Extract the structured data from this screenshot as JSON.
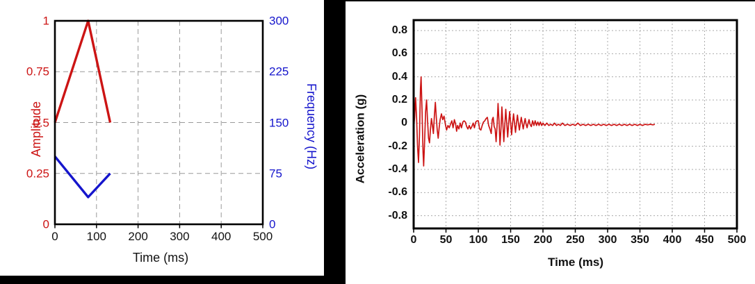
{
  "canvas": {
    "background": "#000000",
    "panel_background": "#ffffff"
  },
  "chart_data": [
    {
      "id": "pulse-definition-chart",
      "type": "line",
      "xlabel": "Time (ms)",
      "x_range": [
        0,
        500
      ],
      "x_ticks": {
        "values": [
          0,
          100,
          200,
          300,
          400,
          500
        ],
        "labels": [
          "0",
          "100",
          "200",
          "300",
          "400",
          "500"
        ],
        "color": "#111111"
      },
      "left_axis": {
        "label": "Amplitude",
        "color": "#cc1414",
        "range": [
          0,
          1
        ],
        "tick_values": [
          0,
          0.25,
          0.5,
          0.75,
          1
        ],
        "tick_labels": [
          "0",
          "0.25",
          "0.5",
          "0.75",
          "1"
        ]
      },
      "right_axis": {
        "label": "Frequency (Hz)",
        "color": "#1515cc",
        "range": [
          0,
          300
        ],
        "tick_values": [
          0,
          75,
          150,
          225,
          300
        ],
        "tick_labels": [
          "0",
          "75",
          "150",
          "225",
          "300"
        ]
      },
      "grid": {
        "show": true,
        "color": "#999999",
        "dash": "7,5",
        "horizontal_axis": "left"
      },
      "series": [
        {
          "id": "amplitude-line",
          "name": "Amplitude",
          "axis": "left",
          "color": "#cc1414",
          "width": 3.4,
          "points": [
            [
              0,
              0.5
            ],
            [
              80,
              1.0
            ],
            [
              133,
              0.5
            ]
          ]
        },
        {
          "id": "frequency-line",
          "name": "Frequency (Hz)",
          "axis": "right",
          "color": "#1515cc",
          "width": 3.4,
          "points": [
            [
              0,
              100
            ],
            [
              80,
              40
            ],
            [
              133,
              75
            ]
          ]
        }
      ]
    },
    {
      "id": "acceleration-time-history-chart",
      "type": "line",
      "xlabel": "Time (ms)",
      "ylabel": "Acceleration (g)",
      "x_range": [
        0,
        500
      ],
      "x_ticks": {
        "values": [
          0,
          50,
          100,
          150,
          200,
          250,
          300,
          350,
          400,
          450,
          500
        ],
        "labels": [
          "0",
          "50",
          "100",
          "150",
          "200",
          "250",
          "300",
          "350",
          "400",
          "450",
          "500"
        ],
        "color": "#111111"
      },
      "y_axis": {
        "label": "Acceleration (g)",
        "color": "#111111",
        "range": [
          -0.91,
          0.89
        ],
        "tick_values": [
          0.8,
          0.6,
          0.4,
          0.2,
          0,
          -0.2,
          -0.4,
          -0.6,
          -0.8
        ],
        "tick_labels": [
          "0.8",
          "0.6",
          "0.4",
          "0.2",
          "0",
          "-0.2",
          "-0.4",
          "-0.6",
          "-0.8"
        ]
      },
      "grid": {
        "show": true,
        "color": "#aaaaaa",
        "dash": "2,3",
        "horizontal_axis": "y"
      },
      "series": [
        {
          "id": "acceleration-trace",
          "name": "Acceleration (g)",
          "axis": "y",
          "color": "#cc1414",
          "width": 1.7,
          "points": [
            [
              0,
              -0.05
            ],
            [
              1.5,
              0.05
            ],
            [
              3,
              0.22
            ],
            [
              4.5,
              0.05
            ],
            [
              6,
              -0.2
            ],
            [
              7.5,
              -0.34
            ],
            [
              9,
              -0.1
            ],
            [
              10.5,
              0.3
            ],
            [
              11.5,
              0.4
            ],
            [
              13,
              0.1
            ],
            [
              14.5,
              -0.25
            ],
            [
              15.5,
              -0.37
            ],
            [
              17,
              -0.15
            ],
            [
              18.5,
              0.1
            ],
            [
              20,
              0.2
            ],
            [
              21.5,
              0.02
            ],
            [
              23,
              -0.13
            ],
            [
              24.5,
              -0.17
            ],
            [
              26,
              -0.05
            ],
            [
              27.5,
              0.04
            ],
            [
              29,
              -0.02
            ],
            [
              30.5,
              -0.09
            ],
            [
              32,
              0.06
            ],
            [
              33.5,
              0.18
            ],
            [
              35,
              0.05
            ],
            [
              36.5,
              -0.06
            ],
            [
              38,
              -0.13
            ],
            [
              39.5,
              -0.04
            ],
            [
              41,
              0.03
            ],
            [
              43,
              0.08
            ],
            [
              45,
              0.03
            ],
            [
              47,
              0.06
            ],
            [
              49,
              -0.01
            ],
            [
              51,
              -0.06
            ],
            [
              53,
              -0.02
            ],
            [
              55,
              -0.04
            ],
            [
              57,
              -0.01
            ],
            [
              59,
              0.02
            ],
            [
              61,
              -0.04
            ],
            [
              63,
              0.03
            ],
            [
              65,
              -0.01
            ],
            [
              66.5,
              -0.07
            ],
            [
              68,
              -0.02
            ],
            [
              70,
              -0.05
            ],
            [
              72,
              0
            ],
            [
              74,
              -0.04
            ],
            [
              76,
              0.01
            ],
            [
              78,
              0.02
            ],
            [
              80,
              0.01
            ],
            [
              82,
              -0.03
            ],
            [
              84,
              -0.05
            ],
            [
              86,
              -0.02
            ],
            [
              88,
              -0.05
            ],
            [
              90,
              -0.03
            ],
            [
              92,
              0
            ],
            [
              94,
              -0.04
            ],
            [
              96,
              0.01
            ],
            [
              98,
              0.02
            ],
            [
              100,
              0.02
            ],
            [
              102,
              -0.05
            ],
            [
              104,
              -0.06
            ],
            [
              106,
              -0.02
            ],
            [
              108,
              0.01
            ],
            [
              110,
              0.02
            ],
            [
              112,
              0.04
            ],
            [
              114,
              0.05
            ],
            [
              116,
              -0.02
            ],
            [
              118,
              -0.05
            ],
            [
              120,
              -0.09
            ],
            [
              121.5,
              0.03
            ],
            [
              123,
              0.05
            ],
            [
              124.5,
              -0.03
            ],
            [
              126,
              -0.05
            ],
            [
              127.5,
              -0.16
            ],
            [
              129,
              -0.02
            ],
            [
              130.5,
              0.17
            ],
            [
              132,
              0.02
            ],
            [
              133.5,
              -0.19
            ],
            [
              135,
              -0.05
            ],
            [
              136.5,
              0.14
            ],
            [
              138,
              0
            ],
            [
              139.5,
              -0.16
            ],
            [
              141,
              -0.02
            ],
            [
              142.5,
              0.12
            ],
            [
              144,
              0
            ],
            [
              145.5,
              -0.12
            ],
            [
              147,
              0
            ],
            [
              148.5,
              0.1
            ],
            [
              150,
              0
            ],
            [
              151.5,
              -0.1
            ],
            [
              153,
              0
            ],
            [
              154.5,
              0.08
            ],
            [
              156,
              0
            ],
            [
              157.5,
              -0.08
            ],
            [
              159,
              0
            ],
            [
              160.5,
              0.07
            ],
            [
              162,
              0
            ],
            [
              163.5,
              -0.06
            ],
            [
              165,
              0
            ],
            [
              166.5,
              0.05
            ],
            [
              168,
              0
            ],
            [
              169.5,
              -0.05
            ],
            [
              171,
              0
            ],
            [
              172.5,
              0.04
            ],
            [
              174,
              -0.01
            ],
            [
              175.5,
              -0.04
            ],
            [
              177,
              0
            ],
            [
              178.5,
              0.03
            ],
            [
              180,
              -0.01
            ],
            [
              182,
              -0.03
            ],
            [
              184,
              0.02
            ],
            [
              186,
              -0.02
            ],
            [
              188,
              0.02
            ],
            [
              190,
              -0.02
            ],
            [
              192,
              0.01
            ],
            [
              194,
              -0.02
            ],
            [
              196,
              0.01
            ],
            [
              198,
              -0.02
            ],
            [
              200,
              0
            ],
            [
              203,
              -0.02
            ],
            [
              206,
              0
            ],
            [
              209,
              -0.02
            ],
            [
              212,
              -0.01
            ],
            [
              215,
              -0.02
            ],
            [
              218,
              0
            ],
            [
              221,
              -0.02
            ],
            [
              224,
              -0.01
            ],
            [
              227,
              -0.02
            ],
            [
              230,
              0
            ],
            [
              234,
              -0.02
            ],
            [
              238,
              -0.01
            ],
            [
              242,
              -0.02
            ],
            [
              246,
              -0.01
            ],
            [
              250,
              -0.02
            ],
            [
              254,
              0
            ],
            [
              258,
              -0.02
            ],
            [
              262,
              -0.01
            ],
            [
              266,
              -0.02
            ],
            [
              270,
              -0.01
            ],
            [
              274,
              -0.02
            ],
            [
              278,
              -0.01
            ],
            [
              282,
              -0.02
            ],
            [
              286,
              -0.01
            ],
            [
              290,
              -0.02
            ],
            [
              294,
              -0.01
            ],
            [
              298,
              -0.02
            ],
            [
              302,
              -0.01
            ],
            [
              306,
              -0.02
            ],
            [
              310,
              -0.01
            ],
            [
              314,
              -0.02
            ],
            [
              318,
              -0.01
            ],
            [
              322,
              -0.02
            ],
            [
              326,
              -0.01
            ],
            [
              330,
              -0.02
            ],
            [
              334,
              -0.01
            ],
            [
              338,
              -0.02
            ],
            [
              342,
              -0.01
            ],
            [
              346,
              -0.02
            ],
            [
              350,
              -0.01
            ],
            [
              354,
              -0.02
            ],
            [
              358,
              -0.01
            ],
            [
              362,
              -0.015
            ],
            [
              366,
              -0.01
            ],
            [
              370,
              -0.015
            ],
            [
              373,
              -0.01
            ]
          ]
        }
      ]
    }
  ]
}
